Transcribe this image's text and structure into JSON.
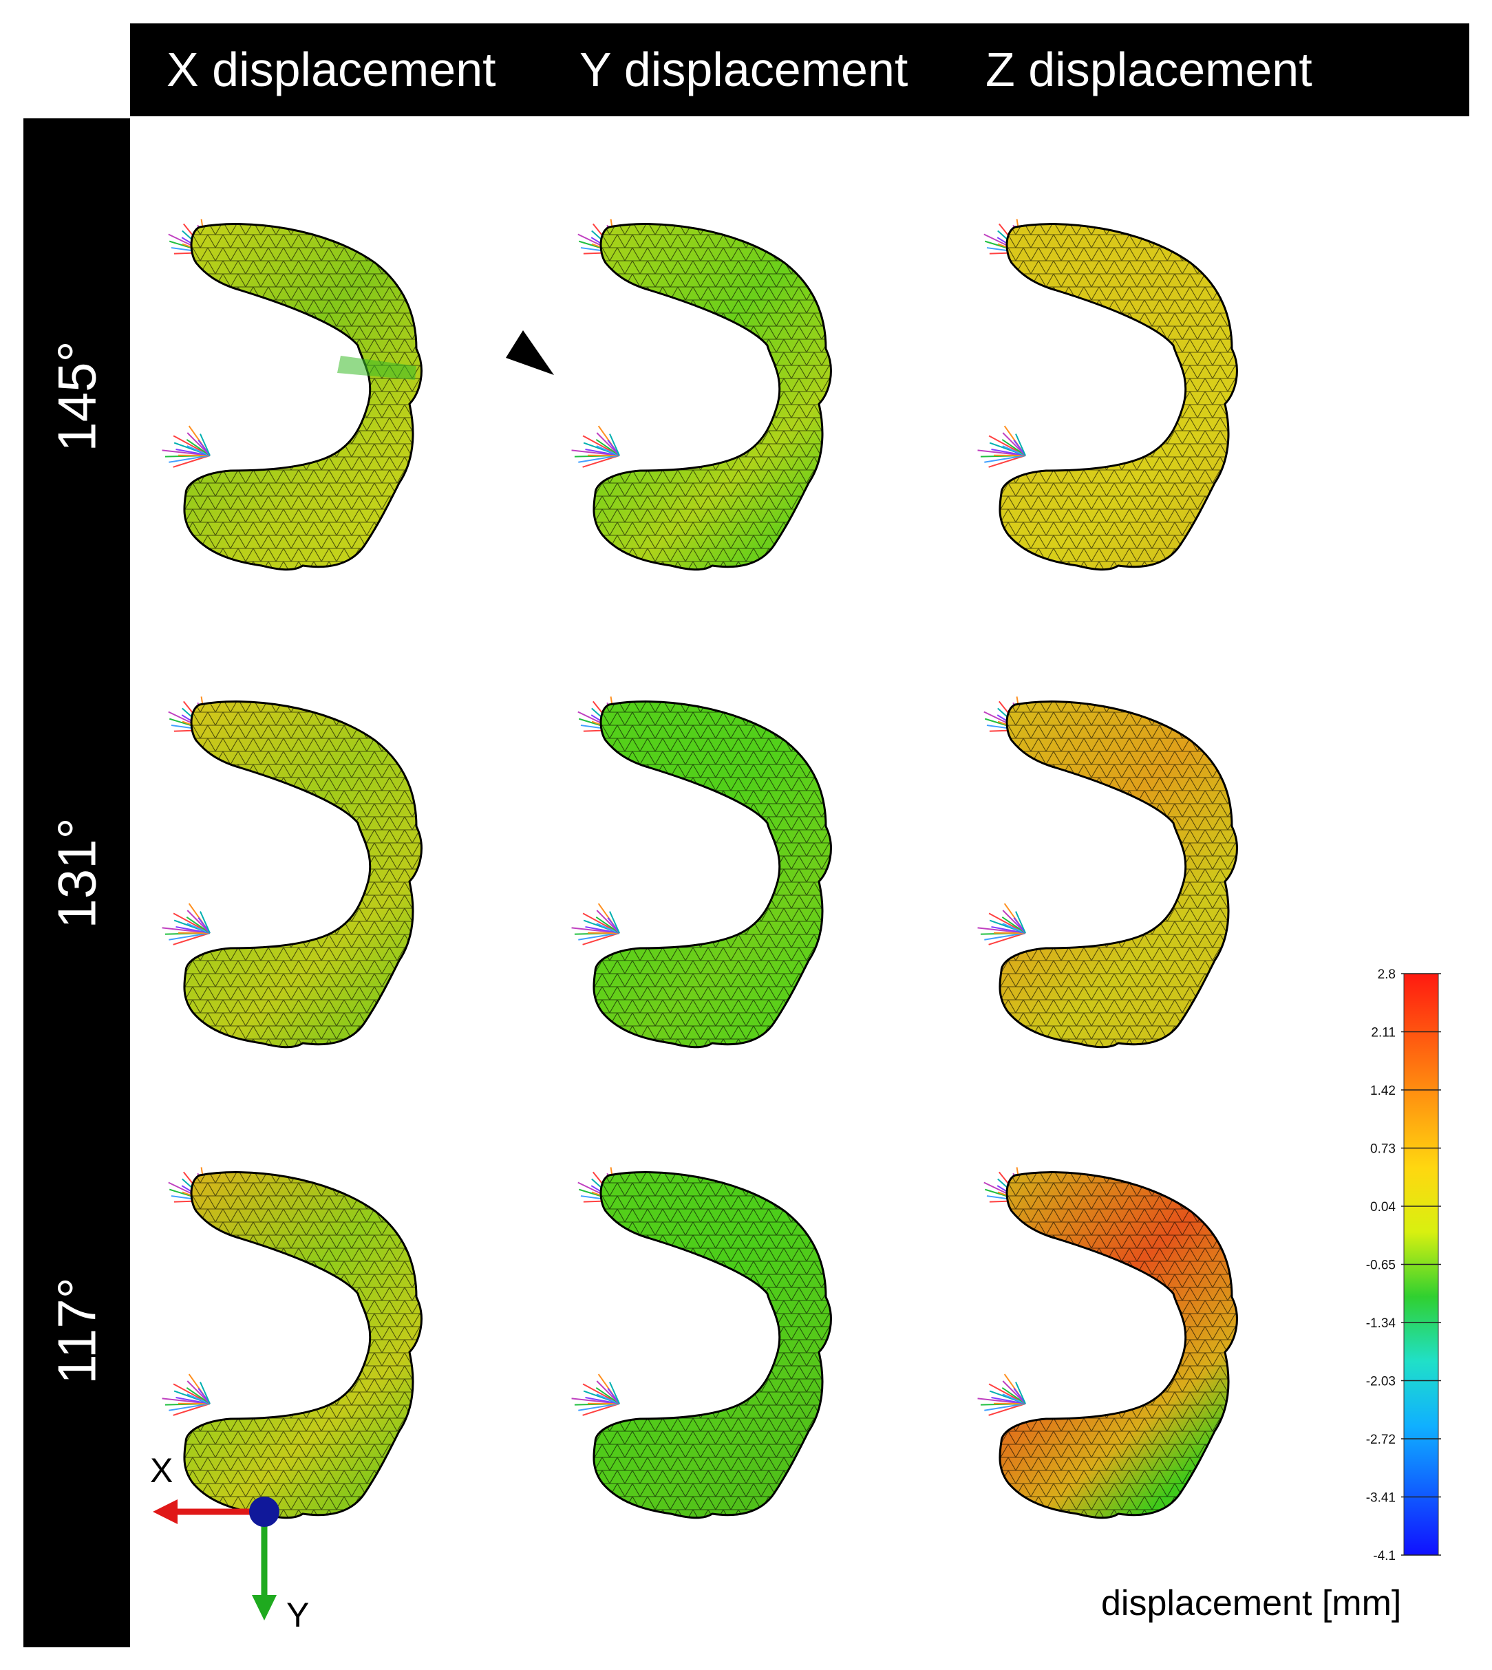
{
  "headers": {
    "columns": [
      "X displacement",
      "Y displacement",
      "Z displacement"
    ],
    "rows": [
      "145°",
      "131°",
      "117°"
    ]
  },
  "panels": [
    {
      "row": "145°",
      "col": "X displacement",
      "base": "#b9d01a",
      "tip": "#c9d21a",
      "mid": "#84c81a",
      "lower": "#c4d21a",
      "marker": "narrow green band with arrowhead"
    },
    {
      "row": "145°",
      "col": "Y displacement",
      "base": "#aed31a",
      "tip": "#b0d31a",
      "mid": "#6ad01a",
      "lower": "#6ccf1a"
    },
    {
      "row": "145°",
      "col": "Z displacement",
      "base": "#d9cf1a",
      "tip": "#dbc71a",
      "mid": "#d9c81a",
      "lower": "#d6c51a"
    },
    {
      "row": "131°",
      "col": "X displacement",
      "base": "#bdcc1a",
      "tip": "#d7c51a",
      "mid": "#a2cc1a",
      "lower": "#8fca1a"
    },
    {
      "row": "131°",
      "col": "Y displacement",
      "base": "#70cf1a",
      "tip": "#55d01a",
      "mid": "#52d01a",
      "lower": "#5ad01a"
    },
    {
      "row": "131°",
      "col": "Z displacement",
      "base": "#cfc81a",
      "tip": "#d7bb1a",
      "mid": "#e0a01a",
      "lower": "#cfc41a"
    },
    {
      "row": "117°",
      "col": "X displacement",
      "base": "#c4cb1a",
      "tip": "#dbb31a",
      "mid": "#92cc1a",
      "lower": "#8ac81a"
    },
    {
      "row": "117°",
      "col": "Y displacement",
      "base": "#56c81a",
      "tip": "#56cf1a",
      "mid": "#4cce1a",
      "lower": "#50c01a"
    },
    {
      "row": "117°",
      "col": "Z displacement",
      "base": "#d9ad1a",
      "tip": "#d4b01a",
      "mid": "#e5551a",
      "lower": "#3fca1a"
    }
  ],
  "colorbar": {
    "title": "displacement [mm]",
    "ticks": [
      "2.8",
      "2.11",
      "1.42",
      "0.73",
      "0.04",
      "-0.65",
      "-1.34",
      "-2.03",
      "-2.72",
      "-3.41",
      "-4.1"
    ],
    "stops": [
      "#ff1a10",
      "#ff5a10",
      "#ff9a10",
      "#ffd710",
      "#d8f010",
      "#30d030",
      "#20e0c8",
      "#10b0ff",
      "#1060ff",
      "#1010ff"
    ]
  },
  "axes_indicator": {
    "x_label": "X",
    "y_label": "Y",
    "x_color": "#e01818",
    "y_color": "#1faa1f",
    "origin_color": "#10189a"
  }
}
